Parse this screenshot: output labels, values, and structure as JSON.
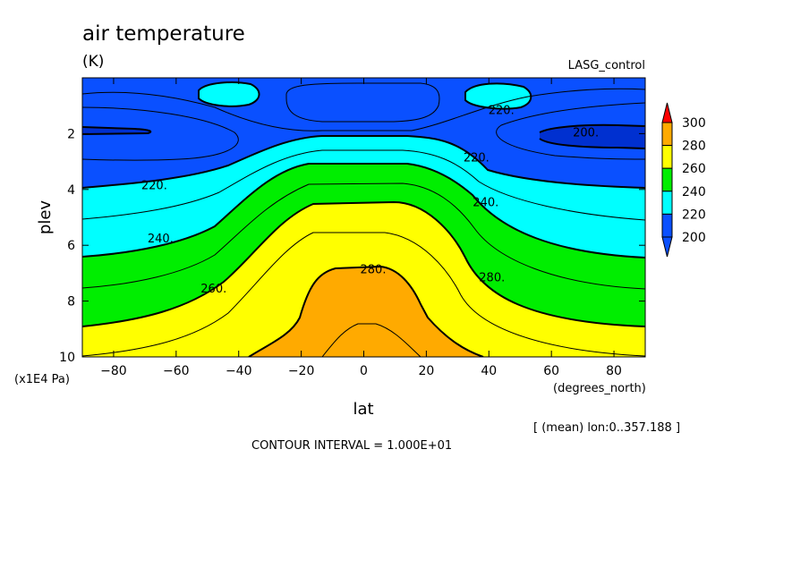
{
  "chart_data": {
    "type": "contour",
    "title": "air temperature",
    "units": "(K)",
    "dataset": "LASG_control",
    "xlabel": "lat",
    "ylabel": "plev",
    "x_units": "(degrees_north)",
    "y_units": "(x1E4 Pa)",
    "xlim": [
      -90,
      90
    ],
    "ylim": [
      10,
      0
    ],
    "x_ticks": [
      -80,
      -60,
      -40,
      -20,
      0,
      20,
      40,
      60,
      80
    ],
    "y_ticks": [
      2,
      4,
      6,
      8,
      10
    ],
    "footnote": "[ (mean) lon:0..357.188 ]",
    "contour_interval": "CONTOUR INTERVAL = 1.000E+01",
    "colorbar": {
      "levels": [
        200,
        220,
        240,
        260,
        280,
        300
      ],
      "colors": [
        "#0a50ff",
        "#00ffff",
        "#00ee00",
        "#ffff00",
        "#ffaa00",
        "#ff0000"
      ],
      "below_color": "#0030d0"
    },
    "contour_labels": [
      {
        "text": "220.",
        "lat": -67,
        "plev": 3.9
      },
      {
        "text": "240.",
        "lat": -65,
        "plev": 5.8
      },
      {
        "text": "260.",
        "lat": -48,
        "plev": 7.6
      },
      {
        "text": "280.",
        "lat": 3,
        "plev": 6.9
      },
      {
        "text": "280.",
        "lat": 41,
        "plev": 7.2
      },
      {
        "text": "240.",
        "lat": 39,
        "plev": 4.5
      },
      {
        "text": "220.",
        "lat": 36,
        "plev": 2.9
      },
      {
        "text": "220.",
        "lat": 44,
        "plev": 1.2
      },
      {
        "text": "200.",
        "lat": 71,
        "plev": 2.0
      }
    ]
  }
}
